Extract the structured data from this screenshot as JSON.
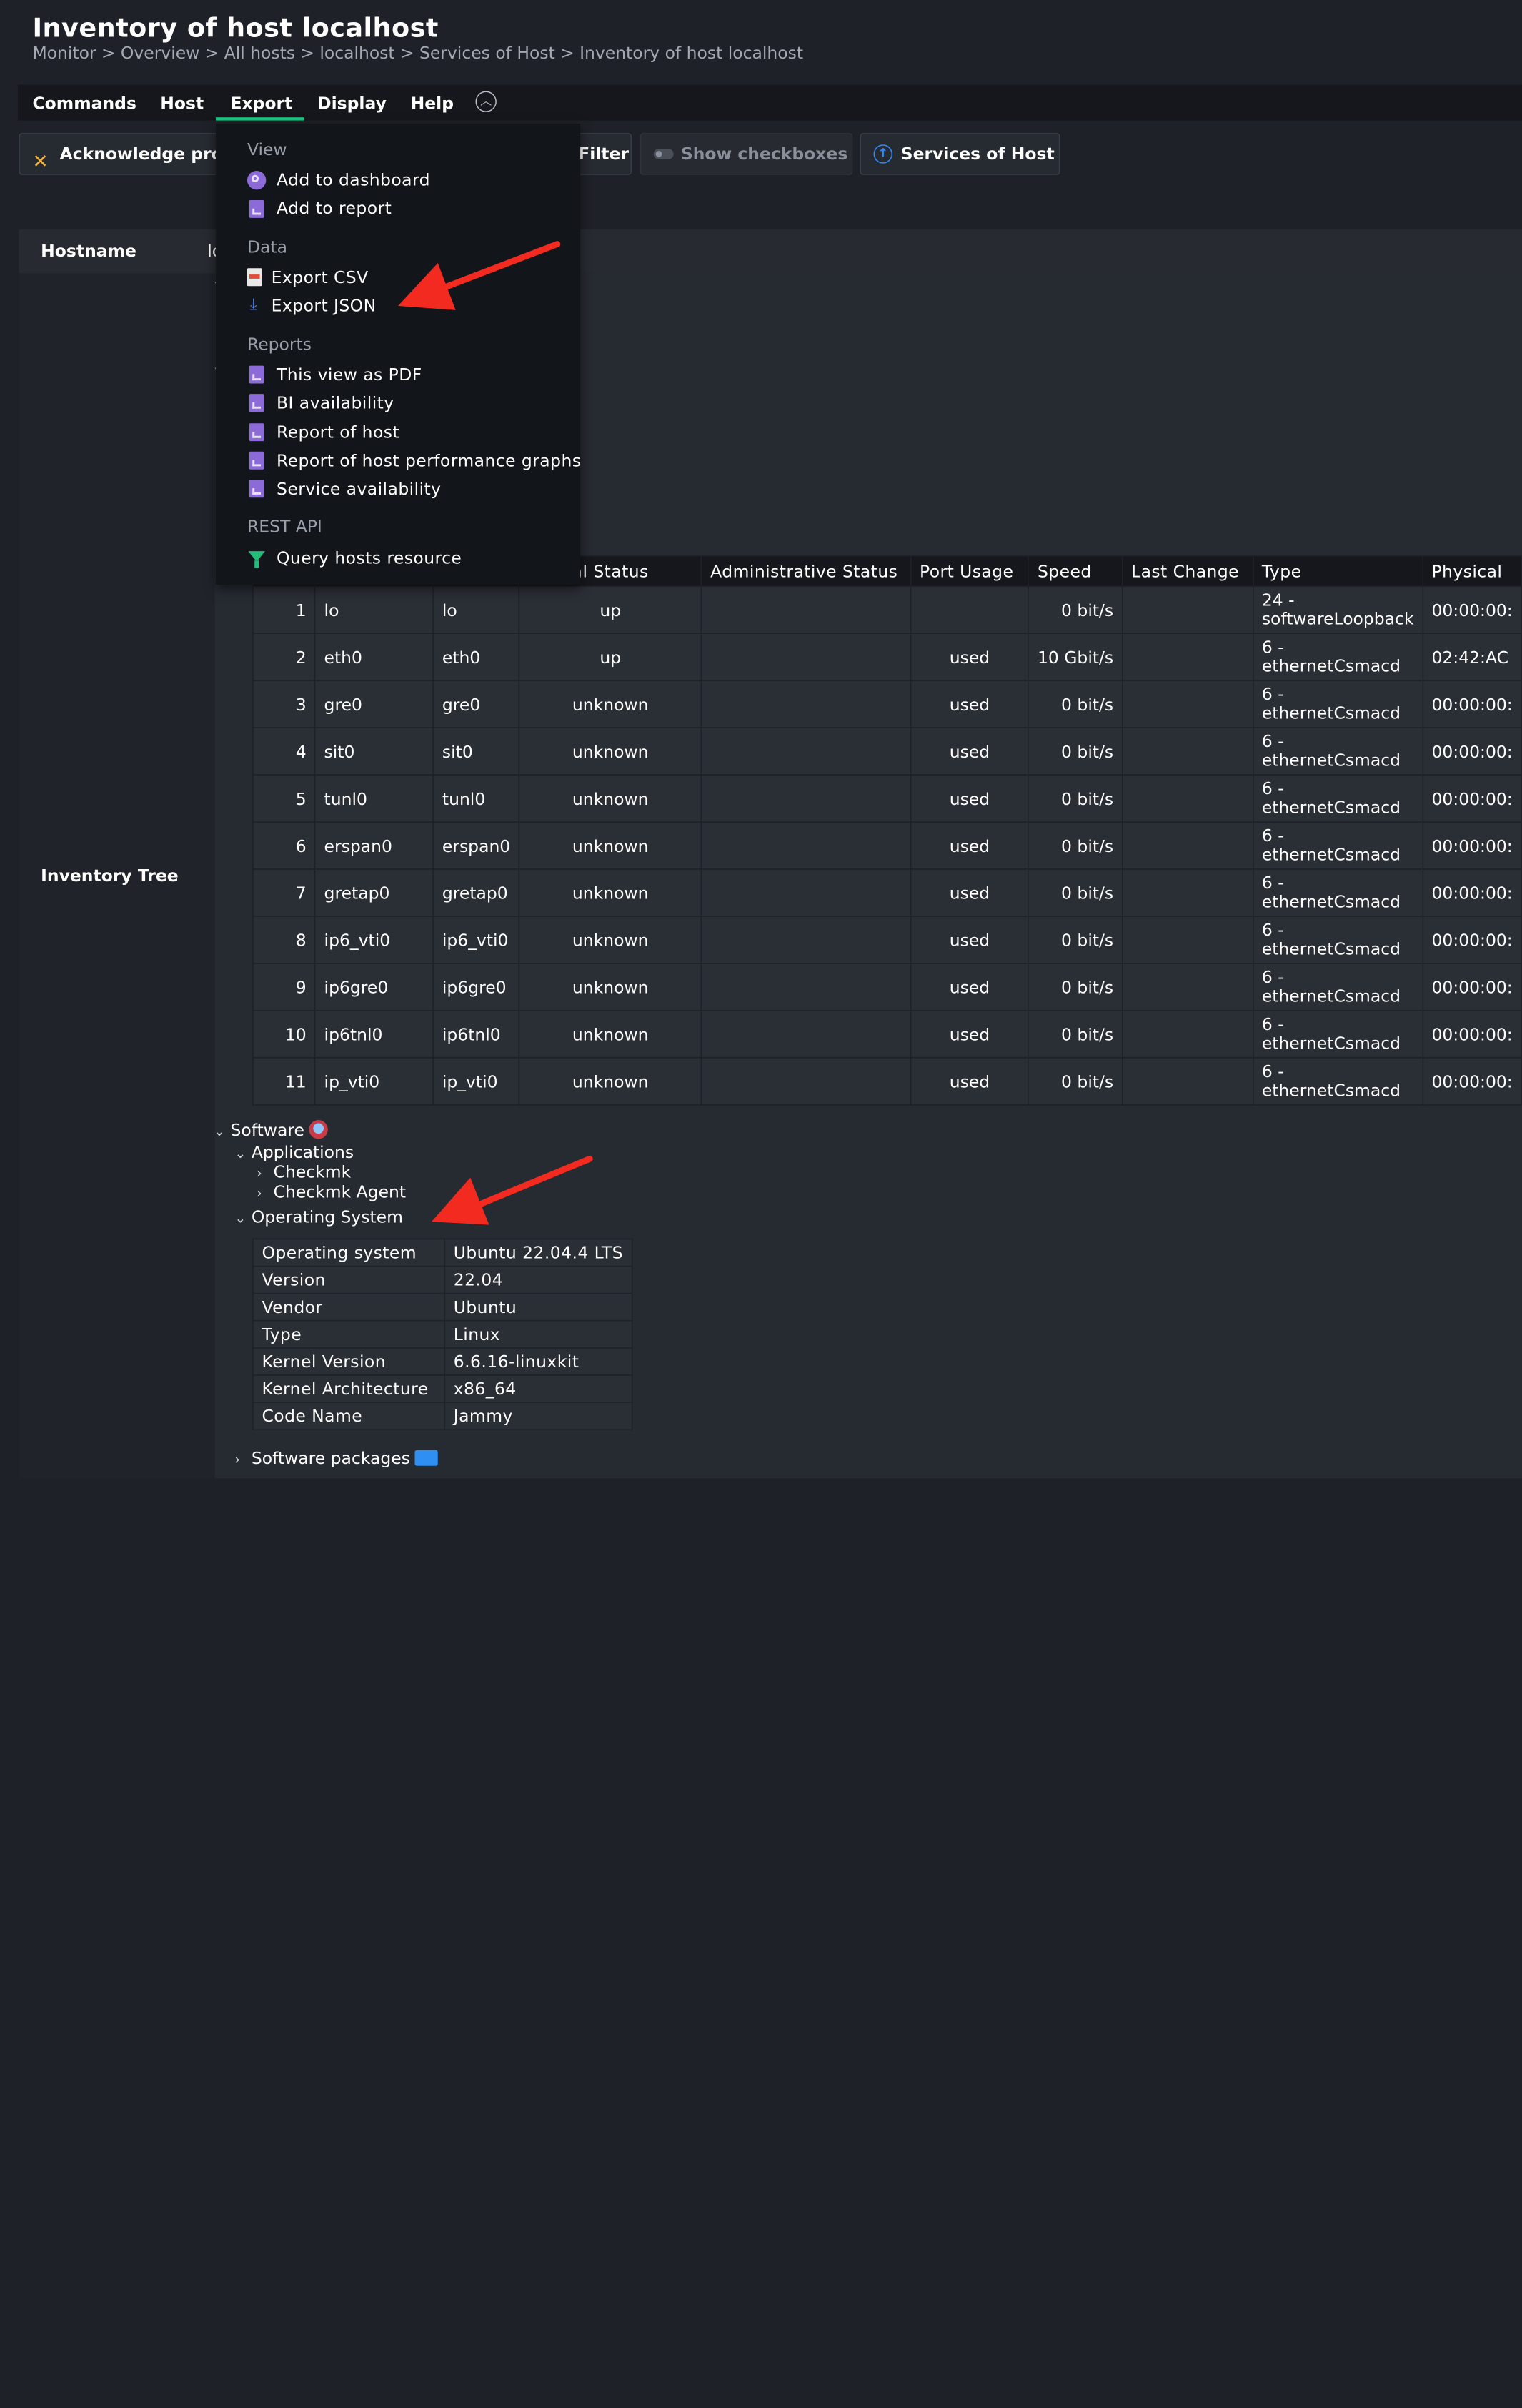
{
  "header": {
    "title": "Inventory of host localhost",
    "breadcrumb": [
      "Monitor",
      "Overview",
      "All hosts",
      "localhost",
      "Services of Host",
      "Inventory of host localhost"
    ],
    "breadcrumb_sep": ">"
  },
  "menubar": {
    "items": [
      "Commands",
      "Host",
      "Export",
      "Display",
      "Help"
    ],
    "active": "Export"
  },
  "toolbar": {
    "acknowledge_label": "Acknowledge prol",
    "filter_label": "Filter",
    "show_checkboxes_label": "Show checkboxes",
    "services_label": "Services of Host"
  },
  "export_menu": {
    "sections": [
      {
        "header": "View",
        "items": [
          "Add to dashboard",
          "Add to report"
        ]
      },
      {
        "header": "Data",
        "items": [
          "Export CSV",
          "Export JSON"
        ]
      },
      {
        "header": "Reports",
        "items": [
          "This view as PDF",
          "BI availability",
          "Report of host",
          "Report of host performance graphs",
          "Service availability"
        ]
      },
      {
        "header": "REST API",
        "items": [
          "Query hosts resource"
        ]
      }
    ]
  },
  "host_table": {
    "hostname_label": "Hostname",
    "hostname_value": "lo",
    "inventory_tree_label": "Inventory Tree"
  },
  "interfaces": {
    "columns": [
      "",
      "",
      "",
      "ational Status",
      "Administrative Status",
      "Port Usage",
      "Speed",
      "Last Change",
      "Type",
      "Physical"
    ],
    "rows": [
      {
        "index": "1",
        "name": "lo",
        "alias": "lo",
        "oper": "up",
        "admin": "",
        "usage": "",
        "speed": "0 bit/s",
        "last_change": "",
        "type_a": "24 -",
        "type_b": "softwareLoopback",
        "phys": "00:00:00:"
      },
      {
        "index": "2",
        "name": "eth0",
        "alias": "eth0",
        "oper": "up",
        "admin": "",
        "usage": "used",
        "speed": "10 Gbit/s",
        "last_change": "",
        "type_a": "6 -",
        "type_b": "ethernetCsmacd",
        "phys": "02:42:AC"
      },
      {
        "index": "3",
        "name": "gre0",
        "alias": "gre0",
        "oper": "unknown",
        "admin": "",
        "usage": "used",
        "speed": "0 bit/s",
        "last_change": "",
        "type_a": "6 -",
        "type_b": "ethernetCsmacd",
        "phys": "00:00:00:"
      },
      {
        "index": "4",
        "name": "sit0",
        "alias": "sit0",
        "oper": "unknown",
        "admin": "",
        "usage": "used",
        "speed": "0 bit/s",
        "last_change": "",
        "type_a": "6 -",
        "type_b": "ethernetCsmacd",
        "phys": "00:00:00:"
      },
      {
        "index": "5",
        "name": "tunl0",
        "alias": "tunl0",
        "oper": "unknown",
        "admin": "",
        "usage": "used",
        "speed": "0 bit/s",
        "last_change": "",
        "type_a": "6 -",
        "type_b": "ethernetCsmacd",
        "phys": "00:00:00:"
      },
      {
        "index": "6",
        "name": "erspan0",
        "alias": "erspan0",
        "oper": "unknown",
        "admin": "",
        "usage": "used",
        "speed": "0 bit/s",
        "last_change": "",
        "type_a": "6 -",
        "type_b": "ethernetCsmacd",
        "phys": "00:00:00:"
      },
      {
        "index": "7",
        "name": "gretap0",
        "alias": "gretap0",
        "oper": "unknown",
        "admin": "",
        "usage": "used",
        "speed": "0 bit/s",
        "last_change": "",
        "type_a": "6 -",
        "type_b": "ethernetCsmacd",
        "phys": "00:00:00:"
      },
      {
        "index": "8",
        "name": "ip6_vti0",
        "alias": "ip6_vti0",
        "oper": "unknown",
        "admin": "",
        "usage": "used",
        "speed": "0 bit/s",
        "last_change": "",
        "type_a": "6 -",
        "type_b": "ethernetCsmacd",
        "phys": "00:00:00:"
      },
      {
        "index": "9",
        "name": "ip6gre0",
        "alias": "ip6gre0",
        "oper": "unknown",
        "admin": "",
        "usage": "used",
        "speed": "0 bit/s",
        "last_change": "",
        "type_a": "6 -",
        "type_b": "ethernetCsmacd",
        "phys": "00:00:00:"
      },
      {
        "index": "10",
        "name": "ip6tnl0",
        "alias": "ip6tnl0",
        "oper": "unknown",
        "admin": "",
        "usage": "used",
        "speed": "0 bit/s",
        "last_change": "",
        "type_a": "6 -",
        "type_b": "ethernetCsmacd",
        "phys": "00:00:00:"
      },
      {
        "index": "11",
        "name": "ip_vti0",
        "alias": "ip_vti0",
        "oper": "unknown",
        "admin": "",
        "usage": "used",
        "speed": "0 bit/s",
        "last_change": "",
        "type_a": "6 -",
        "type_b": "ethernetCsmacd",
        "phys": "00:00:00:"
      }
    ]
  },
  "software_tree": {
    "software": "Software",
    "applications": "Applications",
    "checkmk": "Checkmk",
    "checkmk_agent": "Checkmk Agent",
    "operating_system": "Operating System",
    "software_packages": "Software packages"
  },
  "os_table": [
    {
      "key": "Operating system",
      "value": "Ubuntu 22.04.4 LTS"
    },
    {
      "key": "Version",
      "value": "22.04"
    },
    {
      "key": "Vendor",
      "value": "Ubuntu"
    },
    {
      "key": "Type",
      "value": "Linux"
    },
    {
      "key": "Kernel Version",
      "value": "6.6.16-linuxkit"
    },
    {
      "key": "Kernel Architecture",
      "value": "x86_64"
    },
    {
      "key": "Code Name",
      "value": "Jammy"
    }
  ],
  "colors": {
    "accent": "#16c784",
    "status_up": "#15d186",
    "status_unknown": "#c052c0",
    "usage_used": "#7a7a7a",
    "annotation_arrow": "#f22a1f"
  }
}
